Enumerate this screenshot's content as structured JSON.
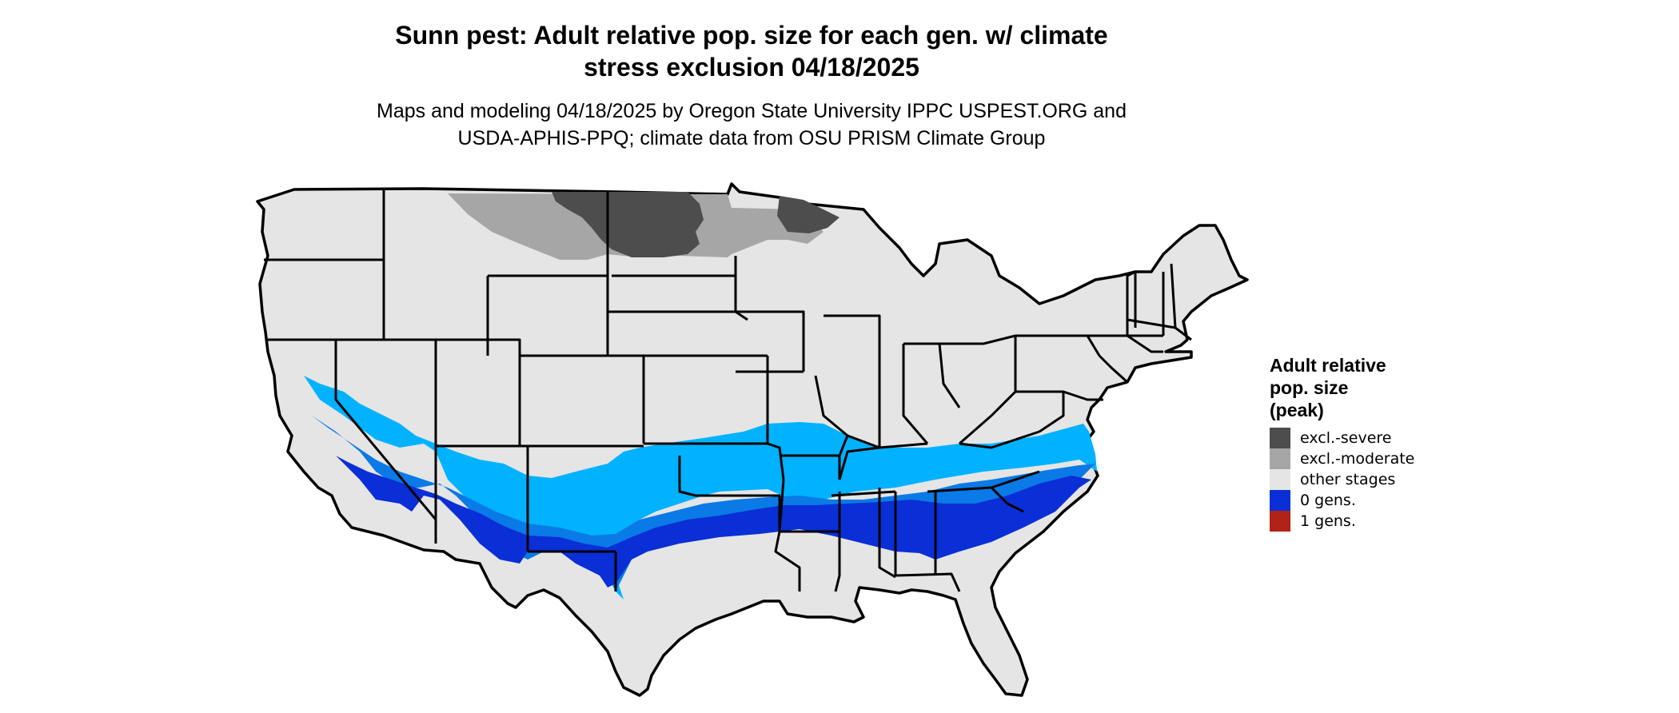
{
  "title": {
    "line1": "Sunn pest: Adult relative pop. size for each gen. w/ climate",
    "line2": "stress exclusion 04/18/2025"
  },
  "subtitle": {
    "line1": "Maps and modeling 04/18/2025 by Oregon State University IPPC USPEST.ORG and",
    "line2": "USDA-APHIS-PPQ; climate data from OSU PRISM Climate Group"
  },
  "legend": {
    "title_line1": "Adult relative",
    "title_line2": "pop. size",
    "title_line3": "(peak)",
    "items": [
      {
        "label": "excl.-severe",
        "color": "#4d4d4d"
      },
      {
        "label": "excl.-moderate",
        "color": "#a6a6a6"
      },
      {
        "label": "other stages",
        "color": "#e5e5e5"
      },
      {
        "label": "0 gens.",
        "color": "#0a2fd6"
      },
      {
        "label": "1 gens.",
        "color": "#b22218"
      }
    ]
  },
  "colors": {
    "land": "#e5e5e5",
    "border": "#000000",
    "zone_light_blue": "#00b2ff",
    "zone_mid_blue": "#0a7ae6",
    "zone_dark_blue": "#0a2fd6"
  }
}
